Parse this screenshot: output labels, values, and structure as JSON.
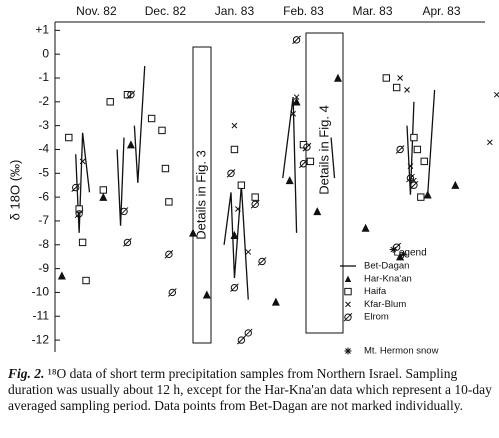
{
  "chart_data": {
    "type": "scatter",
    "y_label": "δ 18O (‰)",
    "categories": [
      "Nov. 82",
      "Dec. 82",
      "Jan. 83",
      "Feb. 83",
      "Mar. 83",
      "Apr. 83"
    ],
    "xlim": [
      -0.1,
      6.13
    ],
    "ylim": [
      -12.5,
      1.35
    ],
    "yticks": [
      {
        "value": 1,
        "label": "+1"
      },
      0,
      -1,
      -2,
      -3,
      -4,
      -5,
      -6,
      -7,
      -8,
      -9,
      -10,
      -11,
      -12
    ],
    "annotations": [
      "Details in Fig. 3",
      "Details in Fig. 4"
    ],
    "legend_title": "Legend",
    "series": [
      {
        "name": "Bet-Dagan",
        "marker": "line",
        "color": "#111",
        "x": [
          0.2,
          0.25,
          0.3,
          0.4,
          null,
          0.8,
          0.85,
          0.9,
          null,
          1.05,
          1.1,
          1.2,
          null,
          2.35,
          2.45,
          2.5,
          2.6,
          2.7,
          null,
          3.2,
          3.35,
          3.4,
          null,
          3.9,
          3.95,
          null,
          5.0,
          5.05,
          5.1,
          null,
          5.3,
          5.4
        ],
        "values": [
          -4.2,
          -7.5,
          -3.3,
          -5.8,
          null,
          -4.0,
          -7.2,
          -3.5,
          null,
          -3.0,
          -5.4,
          -0.5,
          null,
          -8.0,
          -5.8,
          -9.4,
          -5.5,
          -10.3,
          null,
          -5.2,
          -1.8,
          -7.5,
          null,
          -3.5,
          -5.2,
          null,
          -3.0,
          -5.9,
          -2.0,
          null,
          -5.9,
          -1.5
        ]
      },
      {
        "name": "Har-Kna'an",
        "marker": "triangle",
        "color": "#111",
        "x": [
          0.0,
          0.6,
          1.0,
          1.9,
          2.1,
          2.5,
          3.1,
          3.3,
          3.4,
          3.7,
          4.0,
          4.4,
          4.9,
          5.3,
          5.7
        ],
        "values": [
          -9.3,
          -6.0,
          -3.8,
          -7.5,
          -10.1,
          -7.6,
          -10.4,
          -5.3,
          -2.0,
          -6.6,
          -1.0,
          -7.3,
          -8.5,
          -5.9,
          -5.5
        ]
      },
      {
        "name": "Haifa",
        "marker": "square",
        "color": "#111",
        "x": [
          0.1,
          0.25,
          0.3,
          0.35,
          0.6,
          0.7,
          0.95,
          1.3,
          1.45,
          1.5,
          1.55,
          2.5,
          2.6,
          2.8,
          3.5,
          3.6,
          4.7,
          4.85,
          5.1,
          5.15,
          5.2,
          5.25
        ],
        "values": [
          -3.5,
          -6.5,
          -7.9,
          -9.5,
          -5.7,
          -2.0,
          -1.7,
          -2.7,
          -3.2,
          -4.8,
          -6.2,
          -4.0,
          -5.5,
          -6.0,
          -3.8,
          -4.5,
          -1.0,
          -1.4,
          -3.5,
          -4.0,
          -6.0,
          -4.5
        ]
      },
      {
        "name": "Kfar-Blum",
        "marker": "x",
        "color": "#111",
        "x": [
          0.3,
          2.5,
          2.55,
          2.7,
          3.35,
          3.4,
          4.9,
          5.0,
          5.05,
          5.1,
          6.2,
          6.3
        ],
        "values": [
          -4.5,
          -3.0,
          -6.5,
          -8.3,
          -2.5,
          -1.8,
          -1.0,
          -1.5,
          -4.7,
          -5.3,
          -3.7,
          -1.7
        ]
      },
      {
        "name": "Elrom",
        "marker": "circle-slash",
        "color": "#111",
        "x": [
          0.2,
          0.25,
          0.9,
          0.95,
          1.0,
          1.55,
          1.6,
          2.45,
          2.5,
          2.6,
          2.7,
          2.8,
          2.9,
          3.4,
          3.5,
          3.55,
          4.85,
          4.9,
          5.05,
          5.1
        ],
        "values": [
          -5.6,
          -6.7,
          -6.6,
          -7.9,
          -1.7,
          -8.4,
          -10.0,
          -5.0,
          -9.8,
          -12.0,
          -11.7,
          -6.3,
          -8.7,
          0.6,
          -4.6,
          -3.9,
          -8.1,
          -4.0,
          -5.2,
          -5.5
        ]
      },
      {
        "name": "Mt. Hermon snow",
        "marker": "star",
        "color": "#111",
        "x": [
          4.8,
          4.95
        ],
        "values": [
          -8.2,
          -8.4
        ]
      }
    ],
    "caption": {
      "label": "Fig. 2.",
      "text": "¹⁸O data of short term precipitation samples from Northern Israel. Sampling duration was usually about 12 h, except for the Har-Kna'an data which represent a 10-day averaged sampling period. Data points from Bet-Dagan are not marked individually."
    }
  }
}
